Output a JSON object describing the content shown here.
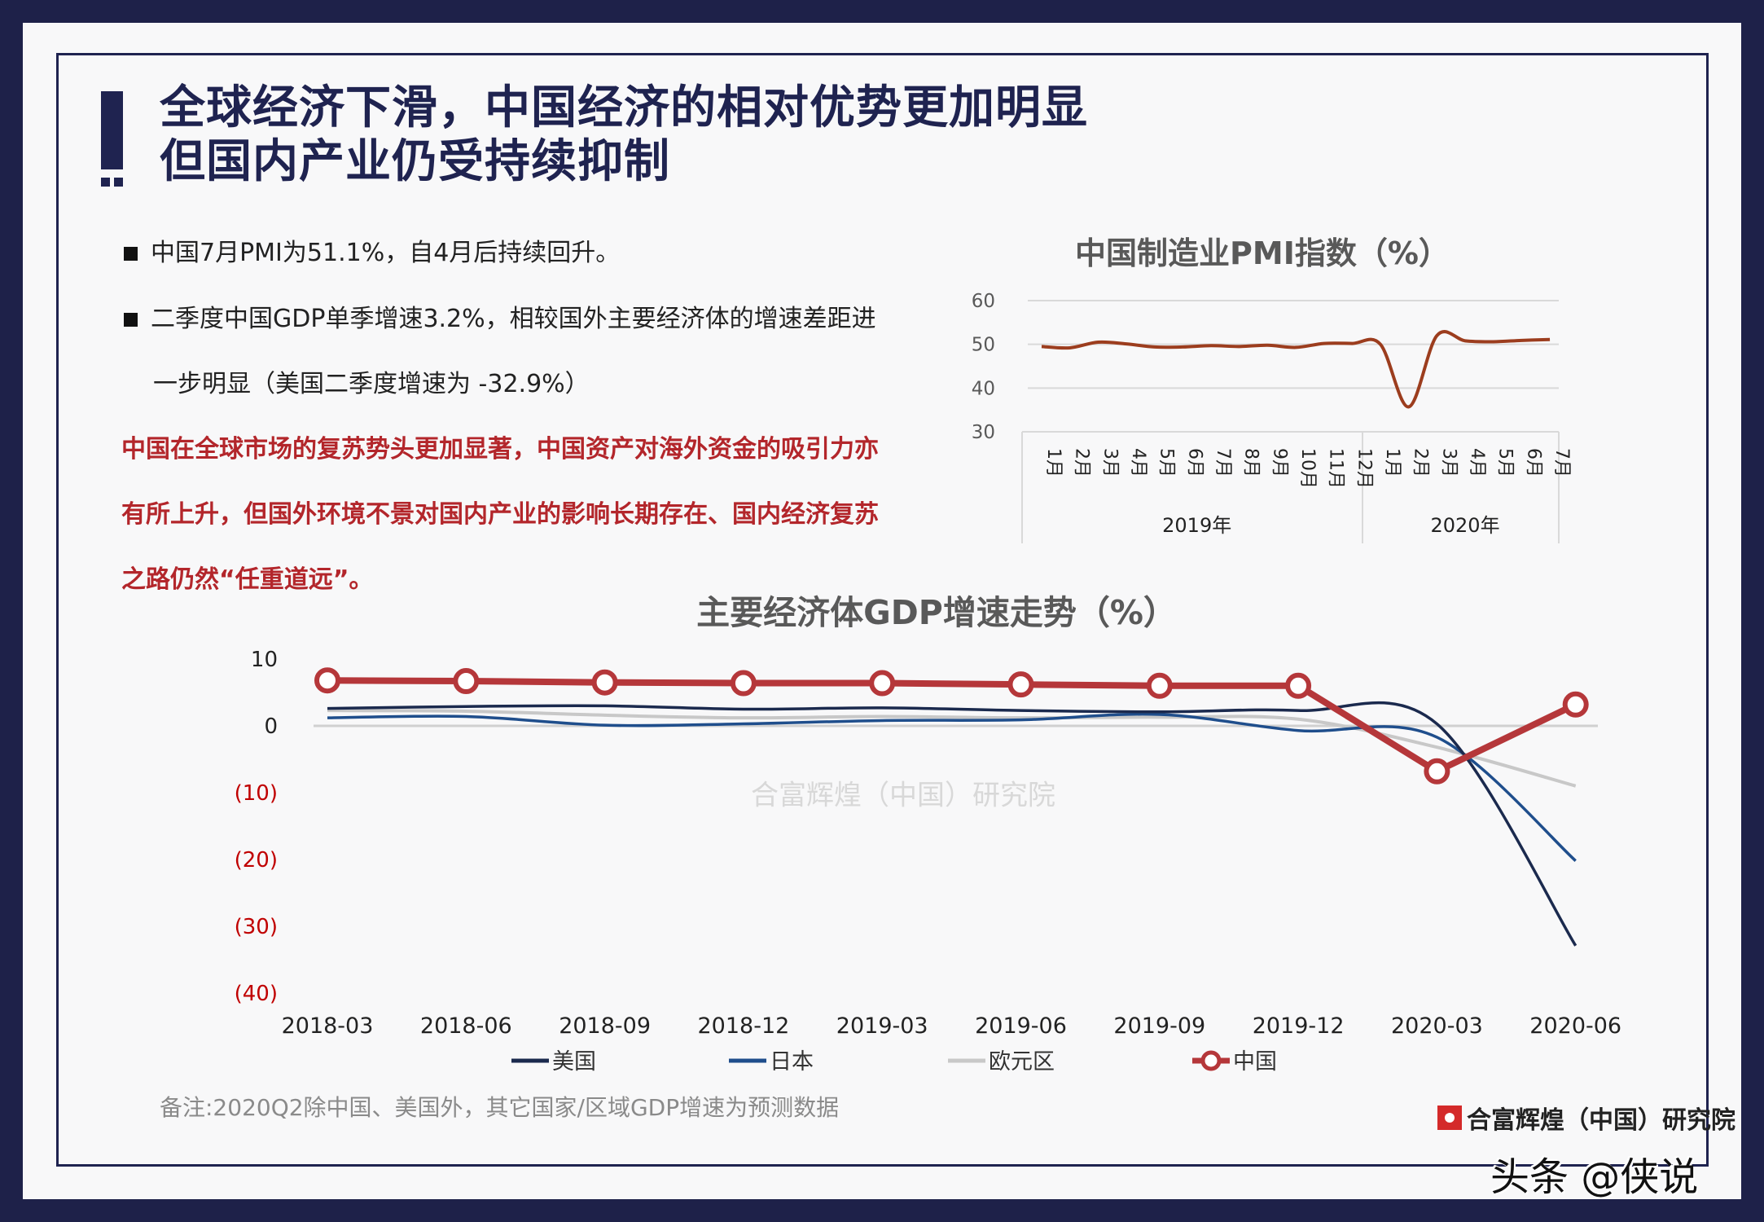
{
  "title": {
    "line1": "全球经济下滑，中国经济的相对优势更加明显",
    "line2": "但国内产业仍受持续抑制"
  },
  "bullets": [
    "中国7月PMI为51.1%，自4月后持续回升。",
    "二季度中国GDP单季增速3.2%，相较国外主要经济体的增速差距进",
    "一步明显（美国二季度增速为 -32.9%）"
  ],
  "highlight": [
    "中国在全球市场的复苏势头更加显著，中国资产对海外资金的吸引力亦",
    "有所上升，但国外环境不景对国内产业的影响长期存在、国内经济复苏",
    "之路仍然“任重道远”。"
  ],
  "note": "备注:2020Q2除中国、美国外，其它国家/区域GDP增速为预测数据",
  "watermark": "合富辉煌（中国）研究院",
  "logo_text": "合富辉煌（中国）研究院",
  "overlay_watermark": "头条 @侠说",
  "colors": {
    "navy": "#1f2350",
    "red": "#b5373a",
    "pmi_line": "#9c3d1e",
    "us": "#1b2a4e",
    "japan": "#1f4e8c",
    "euro": "#c8c8c8"
  },
  "chart_data": [
    {
      "type": "line",
      "title": "中国制造业PMI指数（%）",
      "ylim": [
        30,
        60
      ],
      "yticks": [
        "60",
        "50",
        "40",
        "30"
      ],
      "categories": [
        "1月",
        "2月",
        "3月",
        "4月",
        "5月",
        "6月",
        "7月",
        "8月",
        "9月",
        "10月",
        "11月",
        "12月",
        "1月",
        "2月",
        "3月",
        "4月",
        "5月",
        "6月",
        "7月"
      ],
      "groups": [
        {
          "label": "2019年",
          "count": 12
        },
        {
          "label": "2020年",
          "count": 7
        }
      ],
      "values": [
        49.5,
        49.2,
        50.5,
        50.1,
        49.4,
        49.4,
        49.7,
        49.5,
        49.8,
        49.3,
        50.2,
        50.2,
        50.0,
        35.7,
        52.0,
        50.8,
        50.6,
        50.9,
        51.1
      ],
      "grid": true
    },
    {
      "type": "line",
      "title": "主要经济体GDP增速走势（%）",
      "ylim": [
        -40,
        10
      ],
      "yticks": [
        {
          "v": 10,
          "label": "10"
        },
        {
          "v": 0,
          "label": "0"
        },
        {
          "v": -10,
          "label": "(10)"
        },
        {
          "v": -20,
          "label": "(20)"
        },
        {
          "v": -30,
          "label": "(30)"
        },
        {
          "v": -40,
          "label": "(40)"
        }
      ],
      "categories": [
        "2018-03",
        "2018-06",
        "2018-09",
        "2018-12",
        "2019-03",
        "2019-06",
        "2019-09",
        "2019-12",
        "2020-03",
        "2020-06"
      ],
      "series": [
        {
          "name": "美国",
          "values": [
            2.6,
            2.9,
            3.0,
            2.5,
            2.7,
            2.3,
            2.1,
            2.3,
            0.3,
            -32.9
          ]
        },
        {
          "name": "日本",
          "values": [
            1.2,
            1.4,
            0.1,
            0.3,
            0.8,
            0.9,
            1.7,
            -0.7,
            -1.7,
            -20.2
          ]
        },
        {
          "name": "欧元区",
          "values": [
            2.3,
            2.2,
            1.6,
            1.2,
            1.4,
            1.2,
            1.3,
            1.0,
            -3.2,
            -9.0
          ]
        },
        {
          "name": "中国",
          "values": [
            6.8,
            6.7,
            6.5,
            6.4,
            6.4,
            6.2,
            6.0,
            6.0,
            -6.8,
            3.2
          ]
        }
      ],
      "legend": "bottom"
    }
  ]
}
